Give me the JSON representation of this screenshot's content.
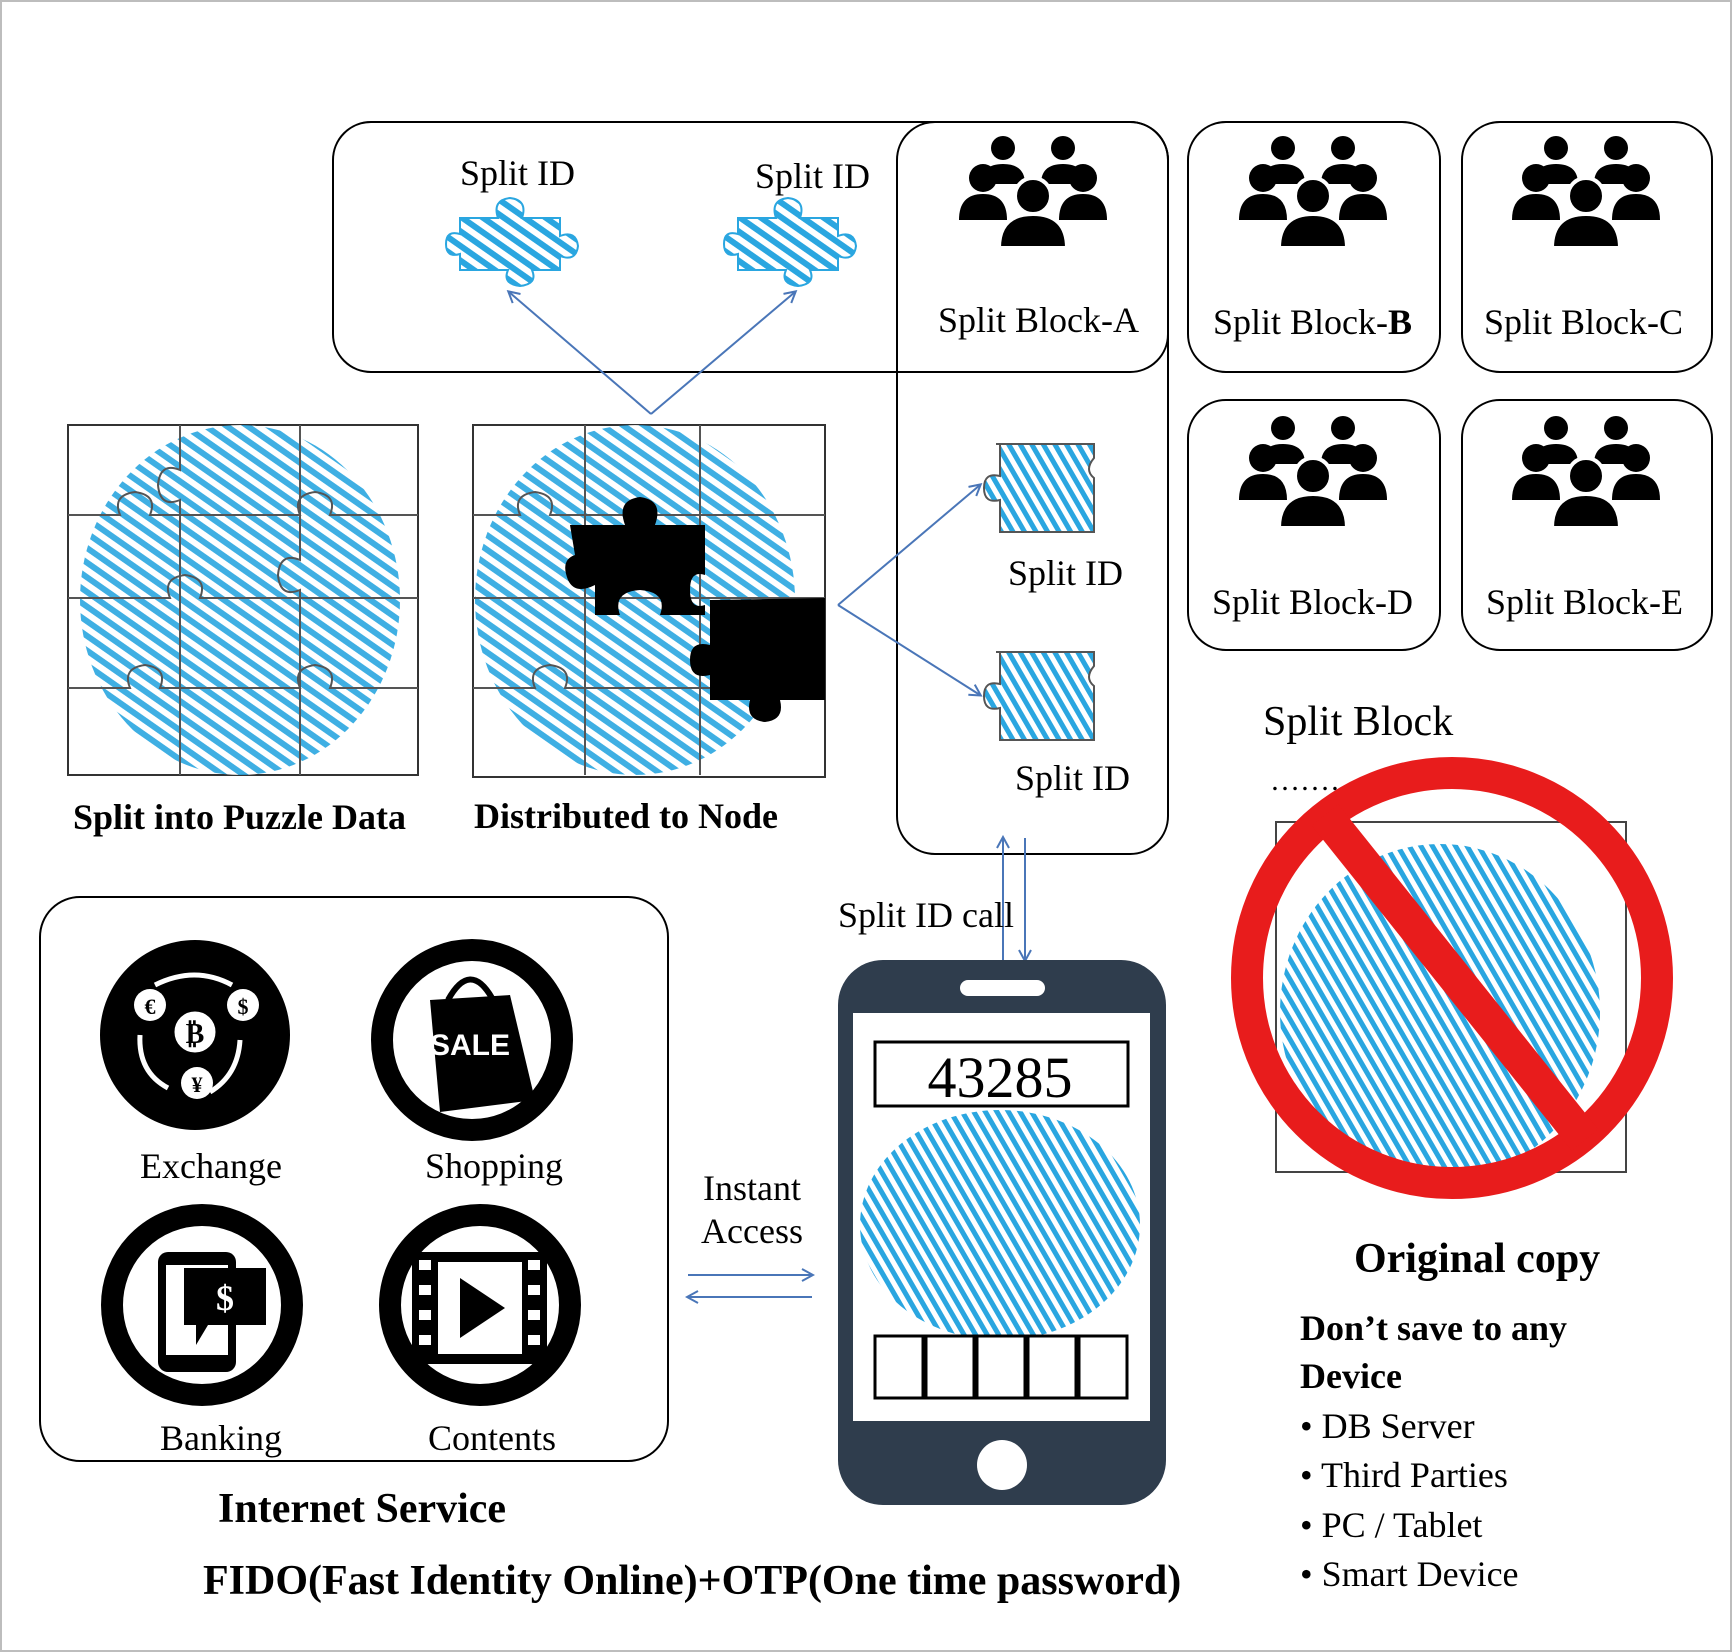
{
  "split_id_top_left": "Split ID",
  "split_id_top_right": "Split ID",
  "split_id_mid_upper": "Split ID",
  "split_id_mid_lower": "Split ID",
  "blocks": {
    "a": "Split Block-A",
    "b_prefix": "Split Block-",
    "b_suffix": "B",
    "c": "Split Block-C",
    "d": "Split Block-D",
    "e": "Split Block-E"
  },
  "split_into_puzzle": "Split into Puzzle Data",
  "distributed_to_node": "Distributed to Node",
  "split_block_label": "Split Block",
  "split_block_dots": "……………",
  "split_id_call": "Split ID call",
  "otp_code": "43285",
  "instant_access_line1": "Instant",
  "instant_access_line2": "Access",
  "services": {
    "exchange": "Exchange",
    "shopping": "Shopping",
    "sale_tag": "SALE",
    "banking": "Banking",
    "contents": "Contents",
    "title": "Internet Service"
  },
  "fido_caption": "FIDO(Fast Identity Online)+OTP(One time password)",
  "original_copy": "Original copy",
  "dont_save_line1": "Don’t save to any",
  "dont_save_line2": "Device",
  "dont_save_items": [
    "• DB Server",
    "• Third Parties",
    "• PC / Tablet",
    "• Smart Device"
  ],
  "colors": {
    "fingerprint": "#2aa6e0",
    "arrow": "#4a76b8",
    "phone": "#2f3d4d",
    "prohibit": "#e81c1c"
  }
}
